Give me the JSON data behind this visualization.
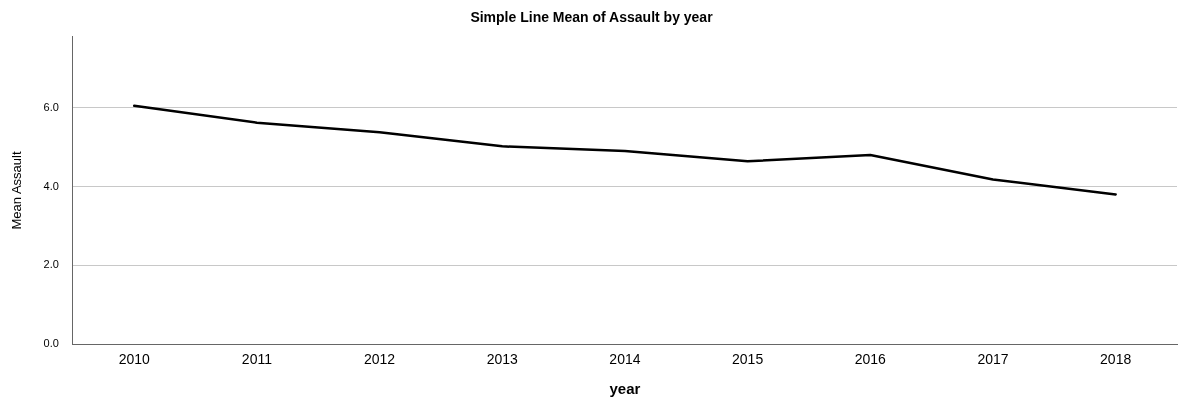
{
  "chart_data": {
    "type": "line",
    "title": "Simple Line Mean of Assault by year",
    "xlabel": "year",
    "ylabel": "Mean Assault",
    "categories": [
      "2010",
      "2011",
      "2012",
      "2013",
      "2014",
      "2015",
      "2016",
      "2017",
      "2018"
    ],
    "series": [
      {
        "color": "#000000",
        "values": [
          6.05,
          5.62,
          5.38,
          5.02,
          4.9,
          4.64,
          4.8,
          4.18,
          3.8
        ]
      }
    ],
    "ylim": [
      0,
      7.8
    ],
    "yticks": [
      {
        "value": 0,
        "label": "0.0"
      },
      {
        "value": 2,
        "label": "2.0"
      },
      {
        "value": 4,
        "label": "4.0"
      },
      {
        "value": 6,
        "label": "6.0"
      }
    ],
    "grid": "y",
    "legend": false,
    "marker": "none",
    "line_style": "solid"
  }
}
